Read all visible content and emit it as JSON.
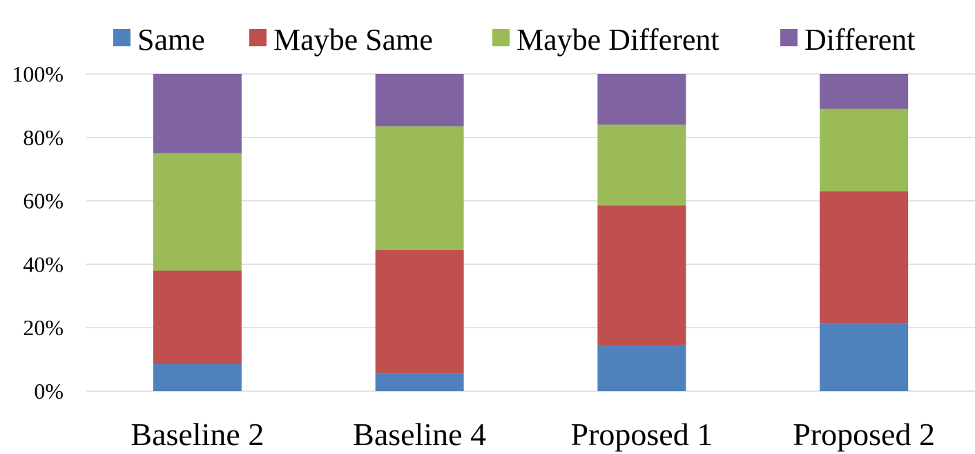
{
  "chart_data": {
    "type": "bar",
    "stacked": true,
    "normalized": true,
    "categories": [
      "Baseline 2",
      "Baseline 4",
      "Proposed 1",
      "Proposed 2"
    ],
    "series": [
      {
        "name": "Same",
        "color": "#4f81bd",
        "values": [
          8.5,
          5.5,
          14.5,
          21.5
        ]
      },
      {
        "name": "Maybe Same",
        "color": "#c0504d",
        "values": [
          29.5,
          39,
          44,
          41.5
        ]
      },
      {
        "name": "Maybe Different",
        "color": "#9bbb59",
        "values": [
          37,
          39,
          25.5,
          26
        ]
      },
      {
        "name": "Different",
        "color": "#8064a2",
        "values": [
          25,
          16.5,
          16,
          11
        ]
      }
    ],
    "ylim": [
      0,
      100
    ],
    "yticks": [
      "0%",
      "20%",
      "40%",
      "60%",
      "80%",
      "100%"
    ],
    "grid": true,
    "legend_position": "top"
  }
}
